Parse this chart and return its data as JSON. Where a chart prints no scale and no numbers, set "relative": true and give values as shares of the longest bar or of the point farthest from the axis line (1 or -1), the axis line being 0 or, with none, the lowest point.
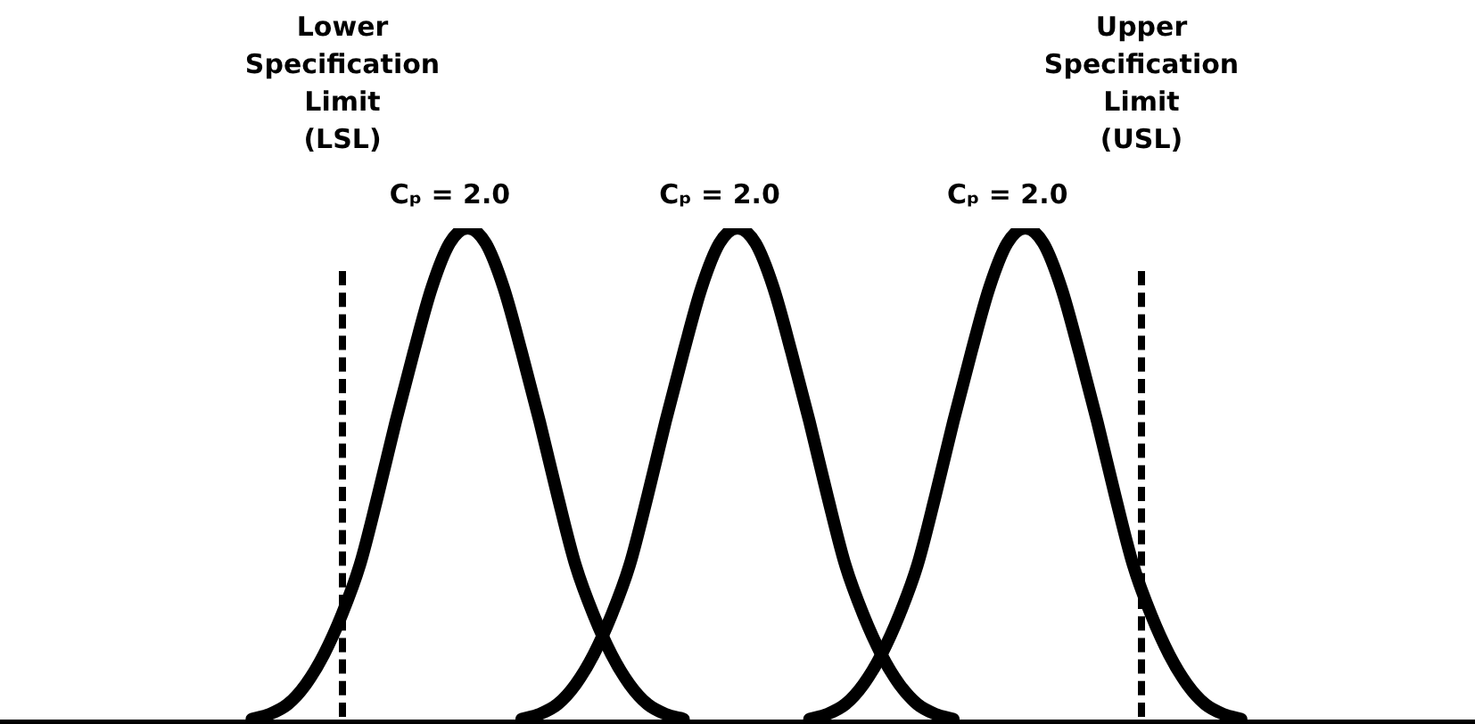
{
  "chart_data": {
    "type": "line",
    "relative": true,
    "grid": false,
    "legend": false,
    "marker": "none",
    "line_style": "solid",
    "categories": [
      null,
      null,
      null,
      null,
      null,
      null,
      null,
      null,
      null,
      null,
      null,
      null,
      null,
      null,
      null,
      null,
      null,
      null,
      null,
      null,
      null,
      null,
      null,
      null,
      null,
      null,
      null,
      null,
      null,
      null,
      null,
      null,
      null,
      null,
      null,
      null,
      null,
      null,
      null,
      null,
      null,
      null,
      null,
      null,
      null,
      null,
      null,
      null,
      null,
      null,
      null,
      null,
      null,
      null,
      null,
      null,
      null,
      null,
      null,
      null,
      null,
      null,
      null,
      null,
      null,
      null,
      null,
      null,
      null,
      null,
      null,
      null,
      null,
      null,
      null,
      null,
      null,
      null,
      null,
      null,
      null,
      null,
      null
    ],
    "series": [
      {
        "color": "#000000",
        "values": [
          null,
          null,
          null,
          null,
          null,
          null,
          null,
          null,
          null,
          null,
          null,
          null,
          null,
          null,
          0.01,
          0.02,
          0.04,
          0.08,
          0.14,
          0.22,
          0.32,
          0.46,
          0.61,
          0.75,
          0.88,
          0.97,
          1,
          0.97,
          0.88,
          0.75,
          0.61,
          0.46,
          0.32,
          0.22,
          0.14,
          0.08,
          0.04,
          0.02,
          0.01,
          null,
          null,
          null,
          null,
          null,
          null,
          null,
          null,
          null,
          null,
          null,
          null,
          null,
          null,
          null,
          null,
          null,
          null,
          null,
          null,
          null,
          null,
          null,
          null,
          null,
          null,
          null,
          null,
          null,
          null,
          null,
          null,
          null,
          null,
          null,
          null,
          null,
          null,
          null,
          null,
          null,
          null,
          null,
          null
        ]
      },
      {
        "color": "#000000",
        "values": [
          null,
          null,
          null,
          null,
          null,
          null,
          null,
          null,
          null,
          null,
          null,
          null,
          null,
          null,
          null,
          null,
          null,
          null,
          null,
          null,
          null,
          null,
          null,
          null,
          null,
          null,
          null,
          null,
          null,
          0.01,
          0.02,
          0.04,
          0.08,
          0.14,
          0.22,
          0.32,
          0.46,
          0.61,
          0.75,
          0.88,
          0.97,
          1,
          0.97,
          0.88,
          0.75,
          0.61,
          0.46,
          0.32,
          0.22,
          0.14,
          0.08,
          0.04,
          0.02,
          0.01,
          null,
          null,
          null,
          null,
          null,
          null,
          null,
          null,
          null,
          null,
          null,
          null,
          null,
          null,
          null,
          null,
          null,
          null,
          null,
          null,
          null,
          null,
          null,
          null,
          null,
          null,
          null,
          null,
          null
        ]
      },
      {
        "color": "#000000",
        "values": [
          null,
          null,
          null,
          null,
          null,
          null,
          null,
          null,
          null,
          null,
          null,
          null,
          null,
          null,
          null,
          null,
          null,
          null,
          null,
          null,
          null,
          null,
          null,
          null,
          null,
          null,
          null,
          null,
          null,
          null,
          null,
          null,
          null,
          null,
          null,
          null,
          null,
          null,
          null,
          null,
          null,
          null,
          null,
          null,
          null,
          0.01,
          0.02,
          0.04,
          0.08,
          0.14,
          0.22,
          0.32,
          0.46,
          0.61,
          0.75,
          0.88,
          0.97,
          1,
          0.97,
          0.88,
          0.75,
          0.61,
          0.46,
          0.32,
          0.22,
          0.14,
          0.08,
          0.04,
          0.02,
          0.01,
          null,
          null,
          null,
          null,
          null,
          null,
          null,
          null,
          null,
          null,
          null,
          null,
          null
        ]
      }
    ],
    "annotations": [
      "Lower Specification Limit (LSL)",
      "Upper Specification Limit (USL)",
      "Cₚ = 2.0",
      "Cₚ = 2.0",
      "Cₚ = 2.0"
    ]
  }
}
